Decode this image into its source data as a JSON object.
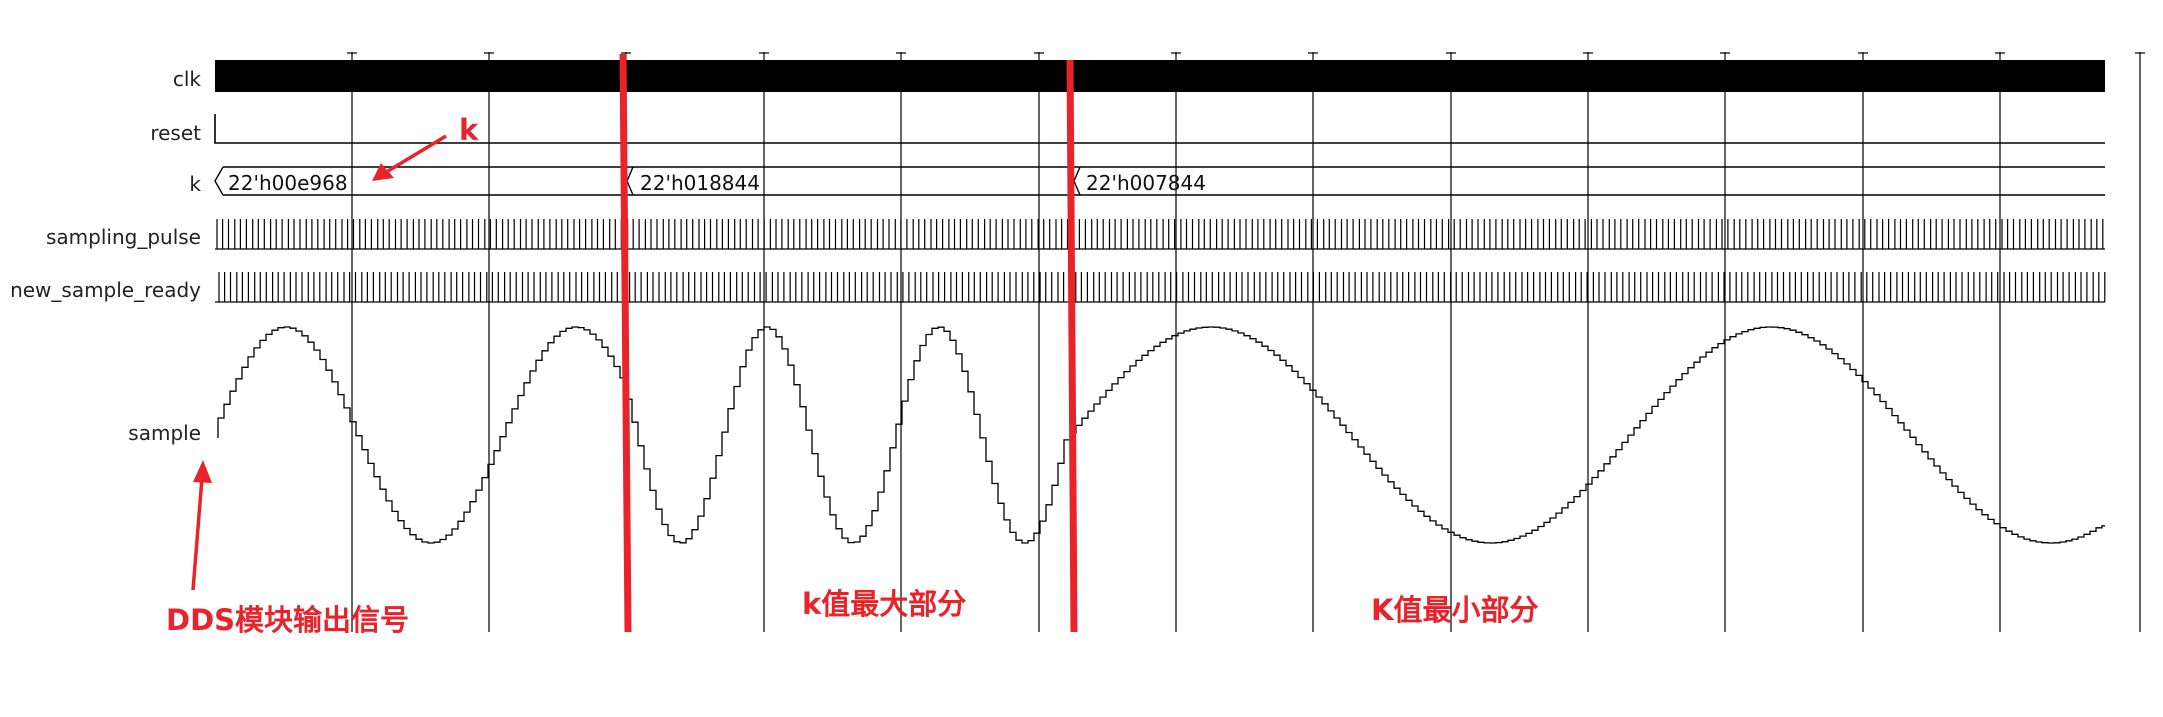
{
  "signals": {
    "clk": "clk",
    "reset": "reset",
    "k": "k",
    "sampling_pulse": "sampling_pulse",
    "new_sample_ready": "new_sample_ready",
    "sample": "sample"
  },
  "k_values": [
    "22'h00e968",
    "22'h018844",
    "22'h007844"
  ],
  "annotations": {
    "k_pointer": "k",
    "dds_output": "DDS模块输出信号",
    "k_max_region": "k值最大部分",
    "k_min_region": "K值最小部分"
  },
  "colors": {
    "trace": "#000000",
    "grid": "#000000",
    "annotation": "#e8232a",
    "background": "#ffffff"
  }
}
